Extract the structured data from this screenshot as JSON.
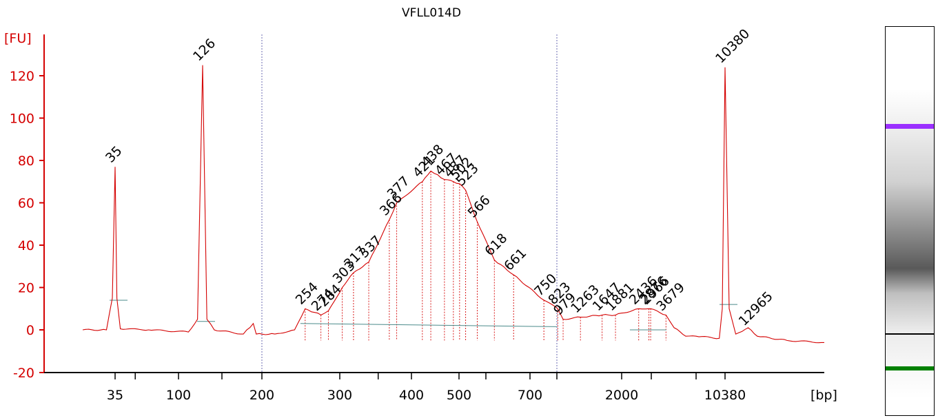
{
  "chart_data": {
    "type": "line",
    "title": "VFLL014D",
    "ylabel": "[FU]",
    "xlabel": "[bp]",
    "ylim": [
      -20,
      130
    ],
    "yticks": [
      -20,
      0,
      20,
      40,
      60,
      80,
      100,
      120
    ],
    "xtick_labels": [
      "35",
      "100",
      "200",
      "300",
      "400",
      "500",
      "700",
      "2000",
      "10380"
    ],
    "colors": {
      "trace": "#d40000",
      "axis": "#d40000",
      "lower_marker": "#008000",
      "upper_marker": "#9b30ff",
      "baseline": "#4a8a8a"
    },
    "markers": [
      {
        "label": "35",
        "type": "lower_marker"
      },
      {
        "label": "10380",
        "type": "upper_marker"
      }
    ],
    "peaks": [
      {
        "label": "35",
        "bp": 35,
        "fu": 77
      },
      {
        "label": "126",
        "bp": 126,
        "fu": 125
      },
      {
        "label": "254",
        "bp": 254,
        "fu": 10
      },
      {
        "label": "274",
        "bp": 274,
        "fu": 7
      },
      {
        "label": "284",
        "bp": 284,
        "fu": 9
      },
      {
        "label": "303",
        "bp": 303,
        "fu": 20
      },
      {
        "label": "317",
        "bp": 317,
        "fu": 27
      },
      {
        "label": "337",
        "bp": 337,
        "fu": 32
      },
      {
        "label": "366",
        "bp": 366,
        "fu": 52
      },
      {
        "label": "377",
        "bp": 377,
        "fu": 60
      },
      {
        "label": "421",
        "bp": 421,
        "fu": 70
      },
      {
        "label": "438",
        "bp": 438,
        "fu": 75
      },
      {
        "label": "467",
        "bp": 467,
        "fu": 71
      },
      {
        "label": "487",
        "bp": 487,
        "fu": 70
      },
      {
        "label": "502",
        "bp": 502,
        "fu": 69
      },
      {
        "label": "523",
        "bp": 523,
        "fu": 66
      },
      {
        "label": "566",
        "bp": 566,
        "fu": 51
      },
      {
        "label": "618",
        "bp": 618,
        "fu": 33
      },
      {
        "label": "661",
        "bp": 661,
        "fu": 26
      },
      {
        "label": "750",
        "bp": 750,
        "fu": 14
      },
      {
        "label": "823",
        "bp": 823,
        "fu": 10
      },
      {
        "label": "979",
        "bp": 979,
        "fu": 5
      },
      {
        "label": "1263",
        "bp": 1263,
        "fu": 6
      },
      {
        "label": "1647",
        "bp": 1647,
        "fu": 7
      },
      {
        "label": "1881",
        "bp": 1881,
        "fu": 7
      },
      {
        "label": "2436",
        "bp": 2436,
        "fu": 10
      },
      {
        "label": "2876",
        "bp": 2876,
        "fu": 10
      },
      {
        "label": "2966",
        "bp": 2966,
        "fu": 10
      },
      {
        "label": "3679",
        "bp": 3679,
        "fu": 7
      },
      {
        "label": "10380",
        "bp": 10380,
        "fu": 124
      },
      {
        "label": "12965",
        "bp": 12965,
        "fu": 0
      }
    ],
    "grid": false,
    "legend": "none"
  }
}
